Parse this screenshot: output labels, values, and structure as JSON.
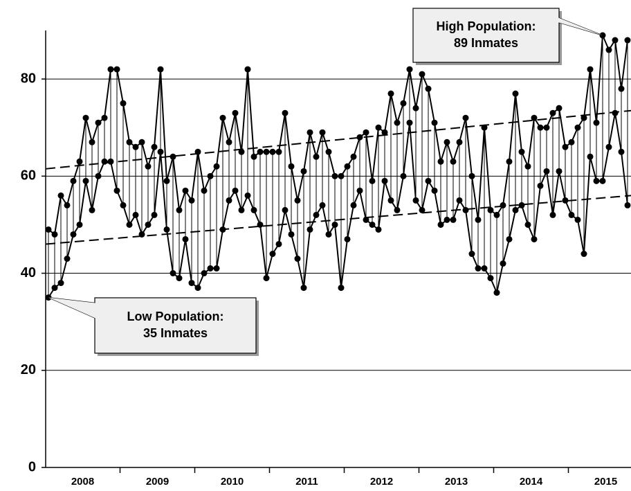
{
  "chart_data": {
    "type": "range-line",
    "series": [
      {
        "name": "High",
        "color": "#000000",
        "values": [
          49,
          48,
          56,
          54,
          59,
          63,
          72,
          67,
          71,
          72,
          82,
          82,
          75,
          67,
          66,
          67,
          62,
          66,
          82,
          59,
          64,
          53,
          57,
          55,
          65,
          57,
          60,
          62,
          72,
          67,
          73,
          65,
          82,
          64,
          65,
          65,
          65,
          65,
          73,
          62,
          55,
          61,
          69,
          64,
          69,
          65,
          60,
          60,
          62,
          64,
          68,
          69,
          59,
          70,
          69,
          77,
          71,
          75,
          82,
          74,
          81,
          78,
          71,
          63,
          67,
          63,
          67,
          72,
          60,
          51,
          70,
          53,
          52,
          54,
          63,
          77,
          65,
          62,
          72,
          70,
          70,
          73,
          74,
          66,
          67,
          70,
          72,
          82,
          71,
          89,
          86,
          88,
          78,
          88
        ]
      },
      {
        "name": "Low",
        "color": "#000000",
        "values": [
          35,
          37,
          38,
          43,
          48,
          50,
          59,
          53,
          60,
          63,
          63,
          57,
          54,
          50,
          52,
          48,
          50,
          52,
          65,
          49,
          40,
          39,
          47,
          38,
          37,
          40,
          41,
          41,
          49,
          55,
          57,
          53,
          56,
          53,
          50,
          39,
          44,
          46,
          53,
          48,
          43,
          37,
          49,
          52,
          54,
          48,
          50,
          37,
          47,
          54,
          57,
          51,
          50,
          49,
          59,
          55,
          53,
          60,
          71,
          55,
          53,
          59,
          57,
          50,
          51,
          51,
          55,
          53,
          44,
          41,
          41,
          39,
          36,
          42,
          47,
          53,
          54,
          50,
          47,
          58,
          61,
          52,
          61,
          55,
          52,
          51,
          44,
          64,
          59,
          59,
          66,
          73,
          65,
          54
        ]
      }
    ],
    "x_labels": [
      "2008",
      "2009",
      "2010",
      "2011",
      "2012",
      "2013",
      "2014",
      "2015"
    ],
    "trend_lines": [
      {
        "start": 61.5,
        "end": 73.5
      },
      {
        "start": 46,
        "end": 56
      }
    ],
    "ylim": [
      0,
      90
    ],
    "yticks": [
      0,
      20,
      40,
      60,
      80
    ],
    "grid": true,
    "annotations": [
      {
        "lines": [
          "High Population:",
          "89 Inmates"
        ],
        "series": 0,
        "point": 89
      },
      {
        "lines": [
          "Low Population:",
          "35 Inmates"
        ],
        "series": 1,
        "point": 0
      }
    ]
  }
}
